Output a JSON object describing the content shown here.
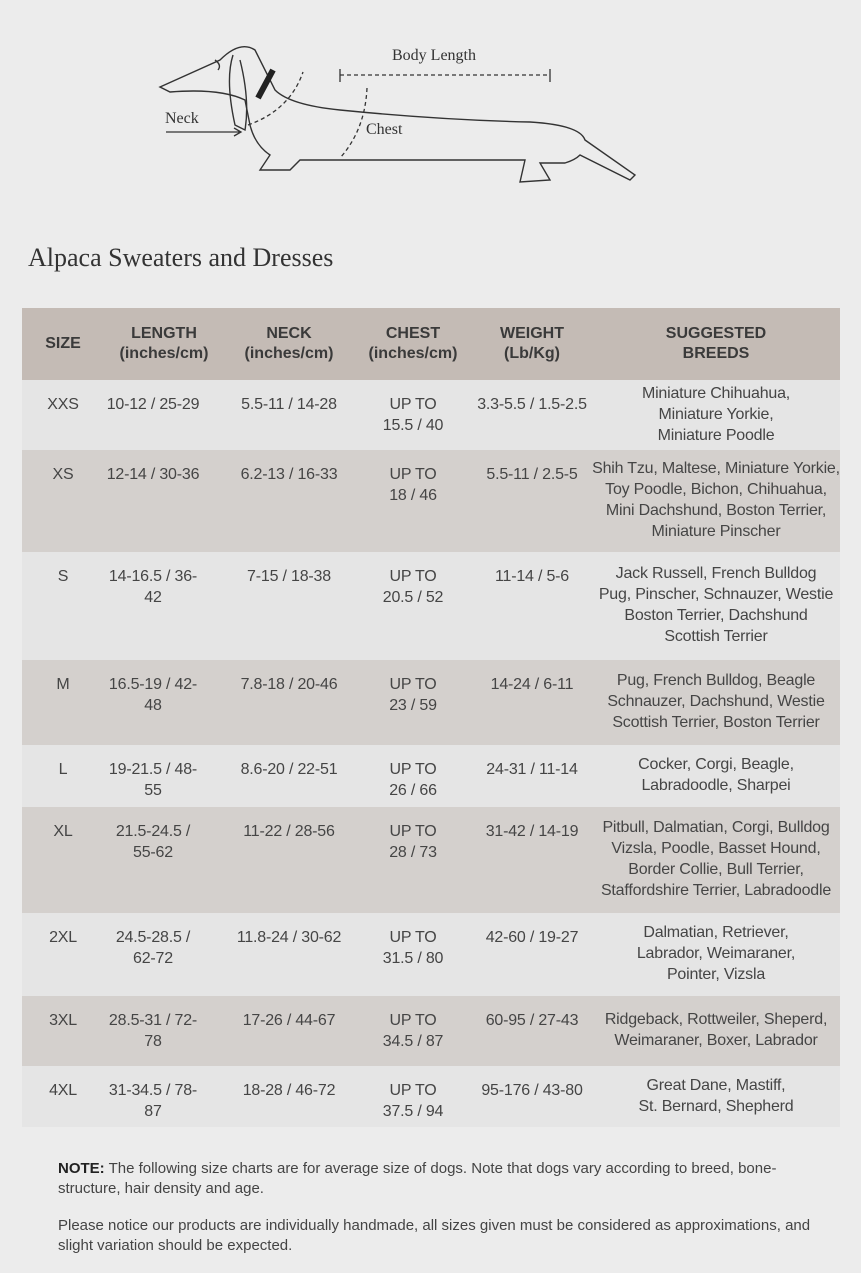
{
  "diagram": {
    "body_length_label": "Body Length",
    "neck_label": "Neck",
    "chest_label": "Chest"
  },
  "title": "Alpaca Sweaters and Dresses",
  "colors": {
    "background": "#ececec",
    "header": "#c4bbb5",
    "row_light": "#e5e5e5",
    "row_dark": "#d4d0cd"
  },
  "table": {
    "headers": [
      {
        "line1": "SIZE",
        "line2": ""
      },
      {
        "line1": "LENGTH",
        "line2": "(inches/cm)"
      },
      {
        "line1": "NECK",
        "line2": "(inches/cm)"
      },
      {
        "line1": "CHEST",
        "line2": "(inches/cm)"
      },
      {
        "line1": "WEIGHT",
        "line2": "(Lb/Kg)"
      },
      {
        "line1": "SUGGESTED",
        "line2": "BREEDS"
      }
    ],
    "rows": [
      {
        "size": "XXS",
        "length": "10-12 / 25-29",
        "neck": "5.5-11 / 14-28",
        "chest1": "UP TO",
        "chest2": "15.5 / 40",
        "weight": "3.3-5.5 / 1.5-2.5",
        "breeds": [
          "Miniature Chihuahua,",
          "Miniature Yorkie,",
          "Miniature Poodle"
        ]
      },
      {
        "size": "XS",
        "length": "12-14 / 30-36",
        "neck": "6.2-13 / 16-33",
        "chest1": "UP TO",
        "chest2": "18 / 46",
        "weight": "5.5-11 / 2.5-5",
        "breeds": [
          "Shih Tzu, Maltese, Miniature Yorkie,",
          "Toy Poodle, Bichon, Chihuahua,",
          "Mini Dachshund, Boston Terrier,",
          "Miniature Pinscher"
        ]
      },
      {
        "size": "S",
        "length": "14-16.5 / 36-42",
        "neck": "7-15 / 18-38",
        "chest1": "UP TO",
        "chest2": "20.5 / 52",
        "weight": "11-14 / 5-6",
        "breeds": [
          "Jack Russell, French Bulldog",
          "Pug, Pinscher, Schnauzer, Westie",
          "Boston Terrier, Dachshund",
          "Scottish Terrier"
        ]
      },
      {
        "size": "M",
        "length": "16.5-19 / 42-48",
        "neck": "7.8-18 / 20-46",
        "chest1": "UP TO",
        "chest2": "23 / 59",
        "weight": "14-24 / 6-11",
        "breeds": [
          "Pug, French Bulldog, Beagle",
          "Schnauzer, Dachshund, Westie",
          "Scottish Terrier, Boston Terrier"
        ]
      },
      {
        "size": "L",
        "length": "19-21.5 / 48-55",
        "neck": "8.6-20 / 22-51",
        "chest1": "UP TO",
        "chest2": "26 / 66",
        "weight": "24-31 / 11-14",
        "breeds": [
          "Cocker, Corgi, Beagle,",
          "Labradoodle, Sharpei"
        ]
      },
      {
        "size": "XL",
        "length": "21.5-24.5 / 55-62",
        "neck": "11-22 / 28-56",
        "chest1": "UP TO",
        "chest2": "28 / 73",
        "weight": "31-42 / 14-19",
        "breeds": [
          "Pitbull, Dalmatian, Corgi, Bulldog",
          "Vizsla, Poodle, Basset Hound,",
          "Border Collie, Bull Terrier,",
          "Staffordshire Terrier, Labradoodle"
        ]
      },
      {
        "size": "2XL",
        "length": "24.5-28.5 / 62-72",
        "neck": "11.8-24 / 30-62",
        "chest1": "UP TO",
        "chest2": "31.5 / 80",
        "weight": "42-60 / 19-27",
        "breeds": [
          "Dalmatian, Retriever,",
          "Labrador, Weimaraner,",
          "Pointer, Vizsla"
        ]
      },
      {
        "size": "3XL",
        "length": "28.5-31 / 72-78",
        "neck": "17-26 / 44-67",
        "chest1": "UP TO",
        "chest2": "34.5 / 87",
        "weight": "60-95 / 27-43",
        "breeds": [
          "Ridgeback, Rottweiler, Sheperd,",
          "Weimaraner, Boxer, Labrador"
        ]
      },
      {
        "size": "4XL",
        "length": "31-34.5 / 78-87",
        "neck": "18-28 / 46-72",
        "chest1": "UP TO",
        "chest2": "37.5 / 94",
        "weight": "95-176 / 43-80",
        "breeds": [
          "Great Dane, Mastiff,",
          "St. Bernard, Shepherd"
        ]
      }
    ]
  },
  "notes": {
    "note_label": "NOTE:",
    "note_text": " The following size charts are for average size of dogs. Note that dogs vary according to breed, bone-structure, hair density and age.",
    "handmade_text": "Please notice our products are individually handmade, all sizes given must be considered as approximations, and  slight variation should be expected."
  }
}
